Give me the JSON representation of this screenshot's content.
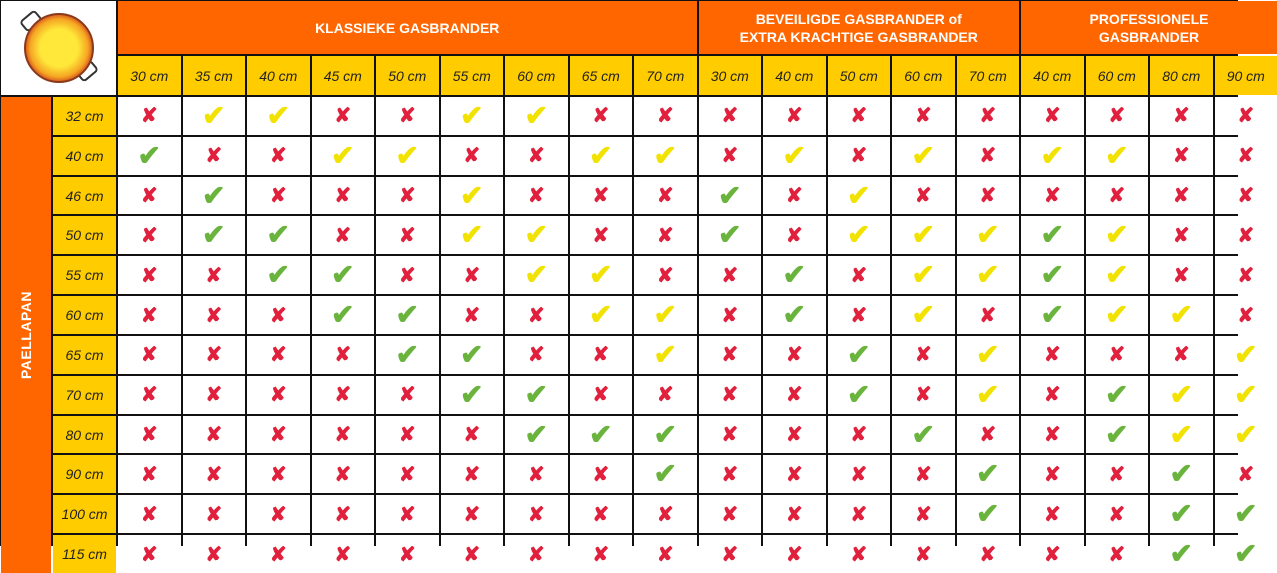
{
  "colors": {
    "header_orange": "#ff6600",
    "header_yellow": "#ffcc00",
    "green_check": "#6ab43e",
    "yellow_check": "#f2e200",
    "red_cross": "#e0203c"
  },
  "logo": {
    "icon": "paella-pan-icon"
  },
  "side_label": "PAELLAPAN",
  "groups": [
    {
      "title": "KLASSIEKE GASBRANDER",
      "columns": [
        "30 cm",
        "35 cm",
        "40 cm",
        "45 cm",
        "50 cm",
        "55 cm",
        "60 cm",
        "65 cm",
        "70 cm"
      ]
    },
    {
      "title": "BEVEILIGDE GASBRANDER of\nEXTRA KRACHTIGE GASBRANDER",
      "columns": [
        "30 cm",
        "40 cm",
        "50 cm",
        "60 cm",
        "70 cm"
      ]
    },
    {
      "title": "PROFESSIONELE\nGASBRANDER",
      "columns": [
        "40 cm",
        "60 cm",
        "80 cm",
        "90 cm"
      ]
    }
  ],
  "legend_codes": {
    "x": "cross-icon (not suitable)",
    "y": "yellow-check-icon",
    "g": "green-check-icon"
  },
  "rows": [
    {
      "label": "32 cm",
      "cells": "xyyxxyyxx xxxxx xxxx"
    },
    {
      "label": "40 cm",
      "cells": "gxxyyxxyy xyxyx yyxx"
    },
    {
      "label": "46 cm",
      "cells": "xgxxxyxxx gxyxx xxxx"
    },
    {
      "label": "50 cm",
      "cells": "xggxxyyxx gxyyy gyxx"
    },
    {
      "label": "55 cm",
      "cells": "xxggxxyyx xgxyy gyxx"
    },
    {
      "label": "60 cm",
      "cells": "xxxggxxyy xgxyx gyyx"
    },
    {
      "label": "65 cm",
      "cells": "xxxxggxxy xxgxy xxxy"
    },
    {
      "label": "70 cm",
      "cells": "xxxxxggxx xxgxy xgyy"
    },
    {
      "label": "80 cm",
      "cells": "xxxxxxggg xxxgx xgyy"
    },
    {
      "label": "90 cm",
      "cells": "xxxxxxxxg xxxxg xxgx"
    },
    {
      "label": "100 cm",
      "cells": "xxxxxxxxx xxxxg xxgg"
    },
    {
      "label": "115 cm",
      "cells": "xxxxxxxxx xxxxx xxgg"
    }
  ]
}
